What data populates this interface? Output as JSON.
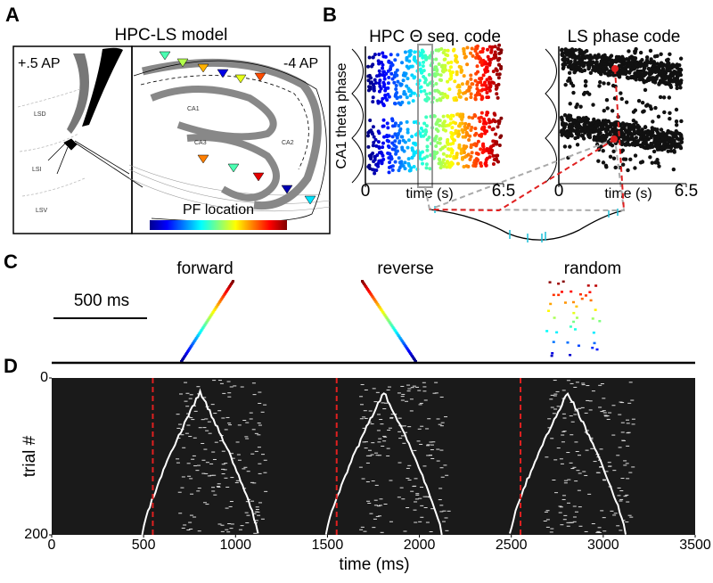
{
  "panel_a": {
    "label": "A",
    "title": "HPC-LS model",
    "left_label": "+.5 AP",
    "right_label": "-4 AP",
    "regions": [
      "LSD",
      "LSI",
      "LSV",
      "CA1",
      "CA2",
      "CA3"
    ],
    "colorbar_label": "PF location"
  },
  "panel_b": {
    "label": "B",
    "left": {
      "title": "HPC Θ seq. code",
      "ylabel": "CA1 theta phase",
      "xlabel": "time (s)",
      "xlim": [
        0,
        6.5
      ],
      "xticks": [
        0,
        6.5
      ]
    },
    "right": {
      "title": "LS phase code",
      "xlabel": "time (s)",
      "xlim": [
        0,
        6.5
      ],
      "xticks": [
        0,
        6.5
      ]
    }
  },
  "panel_c": {
    "label": "C",
    "scale_bar": "500 ms",
    "sequences": [
      "forward",
      "reverse",
      "random"
    ]
  },
  "panel_d": {
    "label": "D",
    "ylabel": "trial #",
    "xlabel": "time (ms)",
    "xlim": [
      0,
      3500
    ],
    "xticks": [
      0,
      500,
      1000,
      1500,
      2000,
      2500,
      3000,
      3500
    ],
    "ylim": [
      0,
      200
    ],
    "yticks": [
      0,
      200
    ],
    "event_times": [
      550,
      1550,
      2550
    ]
  }
}
